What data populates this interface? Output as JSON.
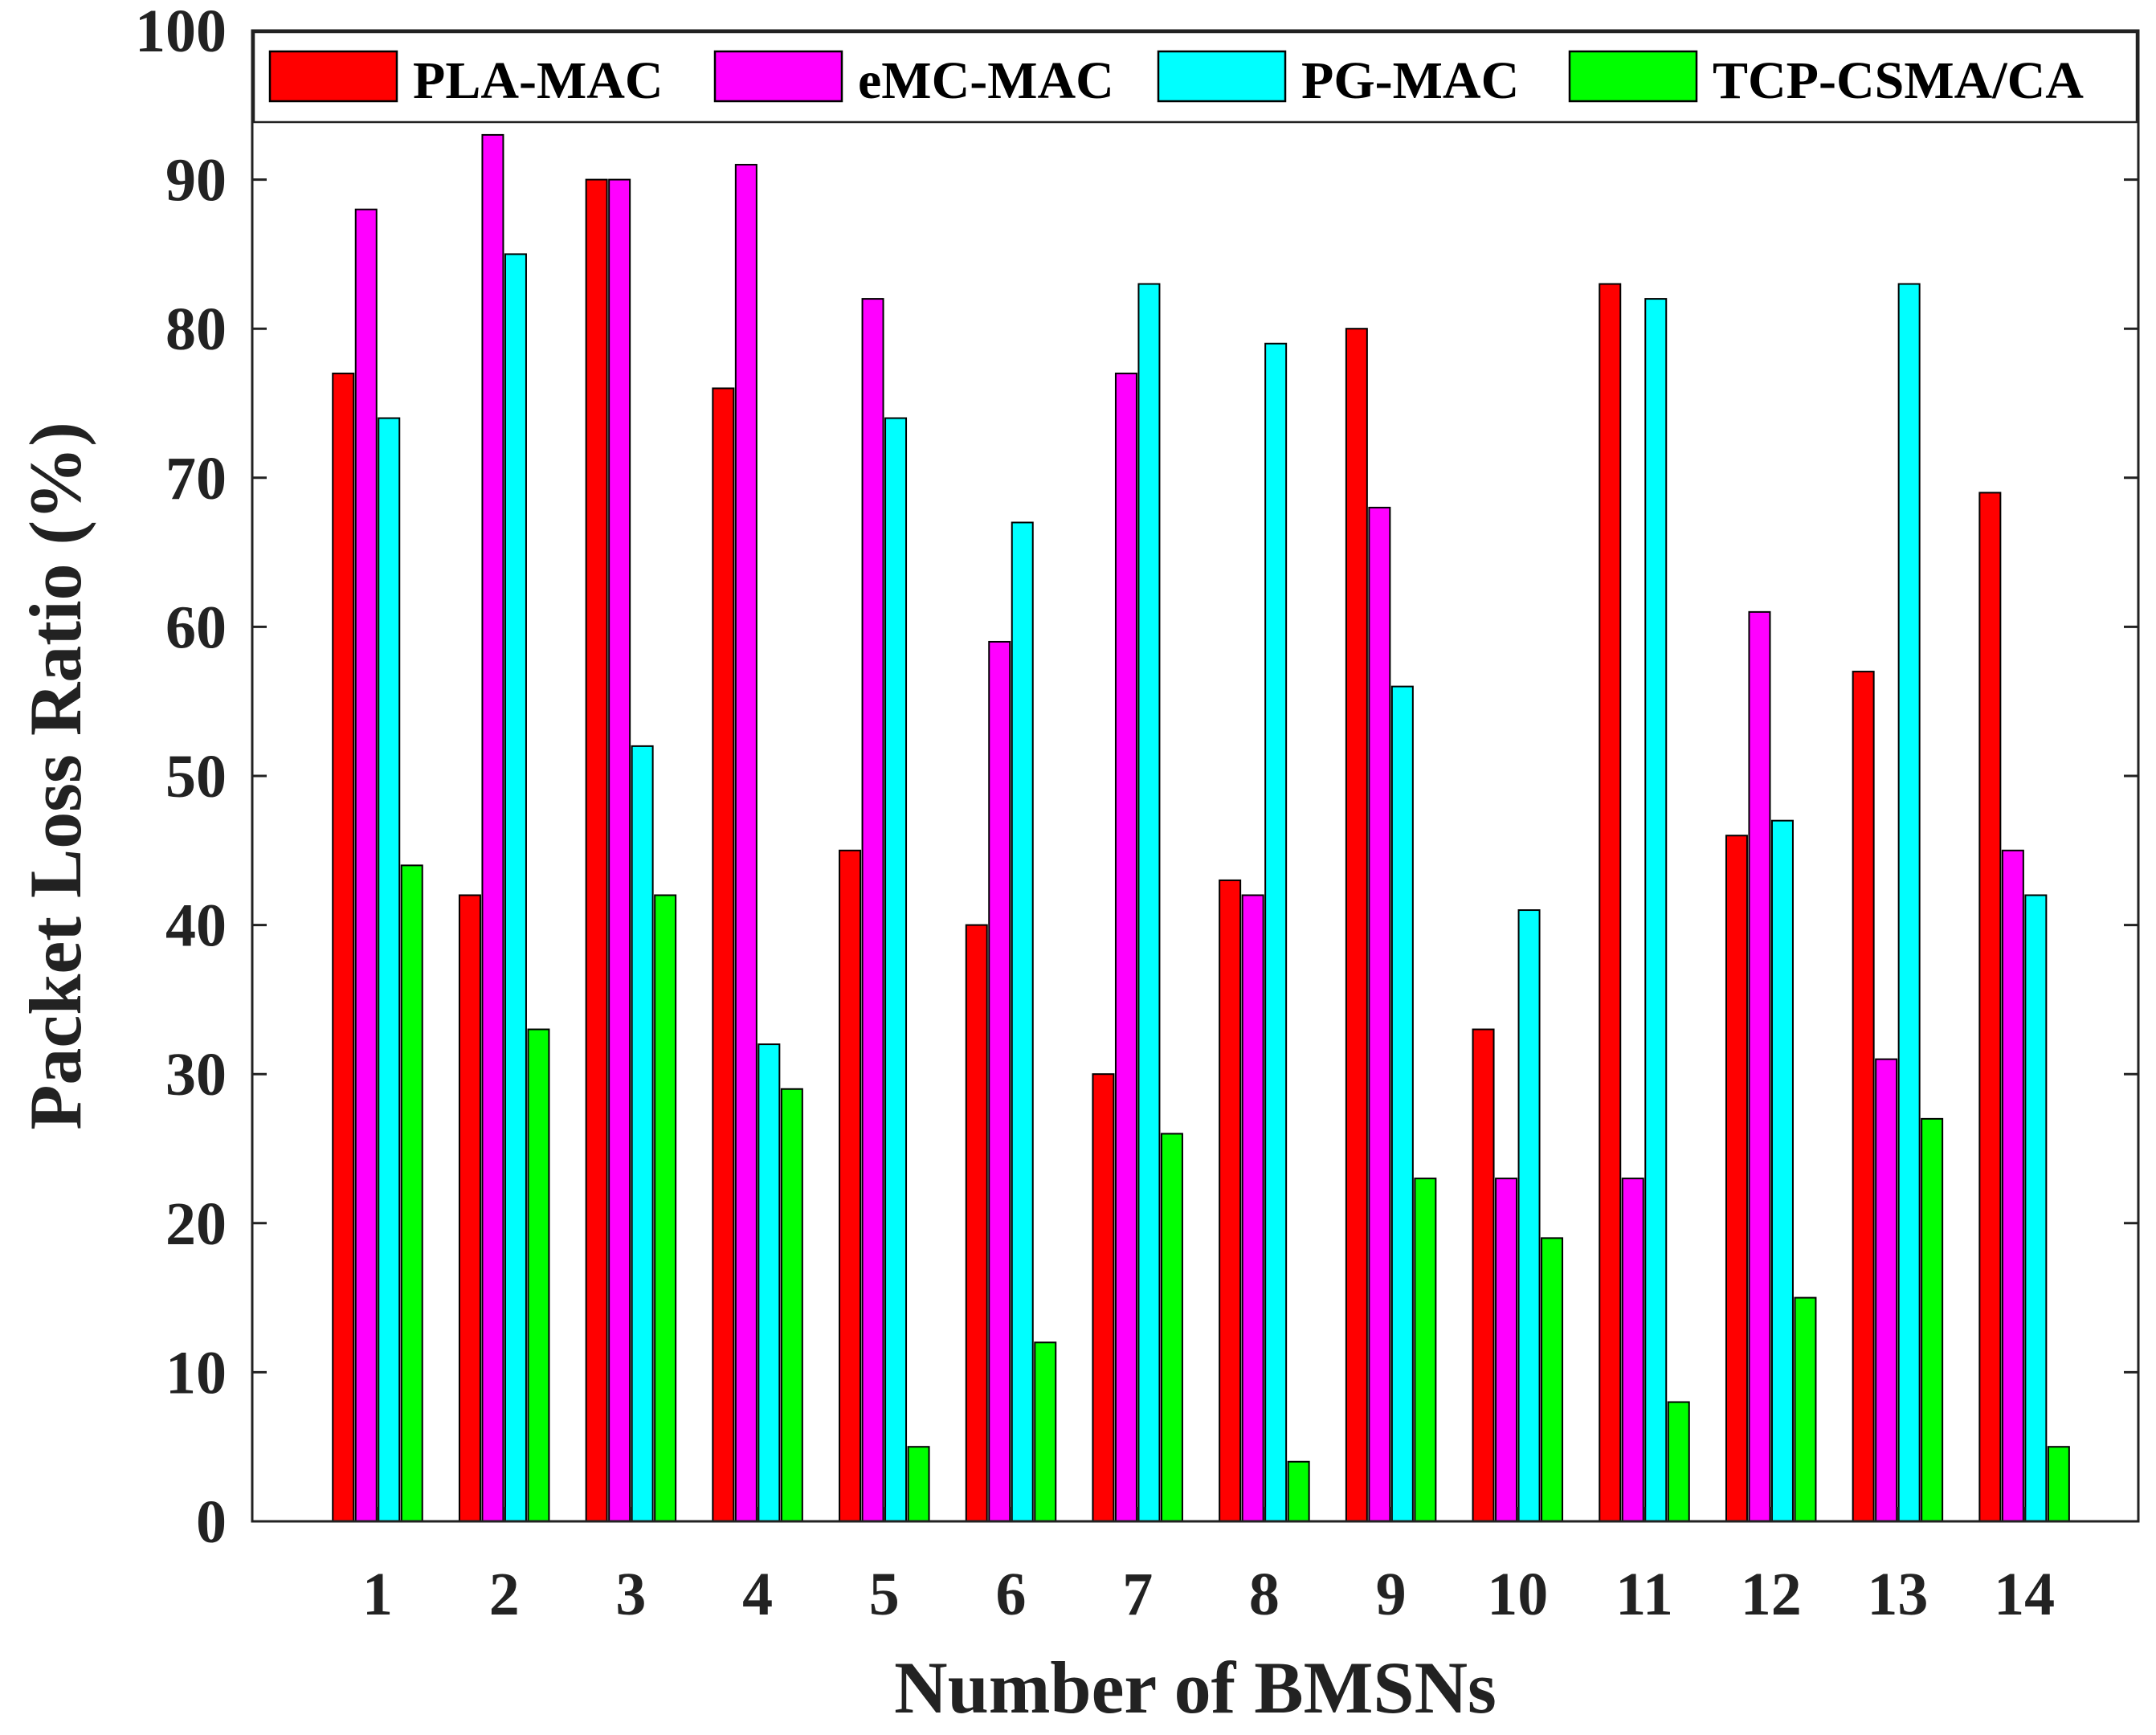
{
  "chart_data": {
    "type": "bar",
    "title": "",
    "xlabel": "Number of BMSNs",
    "ylabel": "Packet Loss Ratio (%)",
    "ylim": [
      0,
      100
    ],
    "yticks": [
      0,
      10,
      20,
      30,
      40,
      50,
      60,
      70,
      80,
      90,
      100
    ],
    "categories": [
      "1",
      "2",
      "3",
      "4",
      "5",
      "6",
      "7",
      "8",
      "9",
      "10",
      "11",
      "12",
      "13",
      "14"
    ],
    "legend_position": "top",
    "grid": false,
    "series": [
      {
        "name": "PLA-MAC",
        "color": "#ff0000",
        "values": [
          77,
          42,
          90,
          76,
          45,
          40,
          30,
          43,
          80,
          33,
          83,
          46,
          57,
          69
        ]
      },
      {
        "name": "eMC-MAC",
        "color": "#ff00ff",
        "values": [
          88,
          93,
          90,
          91,
          82,
          59,
          77,
          42,
          68,
          23,
          23,
          61,
          31,
          45
        ]
      },
      {
        "name": "PG-MAC",
        "color": "#00ffff",
        "values": [
          74,
          85,
          52,
          32,
          74,
          67,
          83,
          79,
          56,
          41,
          82,
          47,
          83,
          42
        ]
      },
      {
        "name": "TCP-CSMA/CA",
        "color": "#00ff00",
        "values": [
          44,
          33,
          42,
          29,
          5,
          12,
          26,
          4,
          23,
          19,
          8,
          15,
          27,
          5
        ]
      }
    ]
  }
}
